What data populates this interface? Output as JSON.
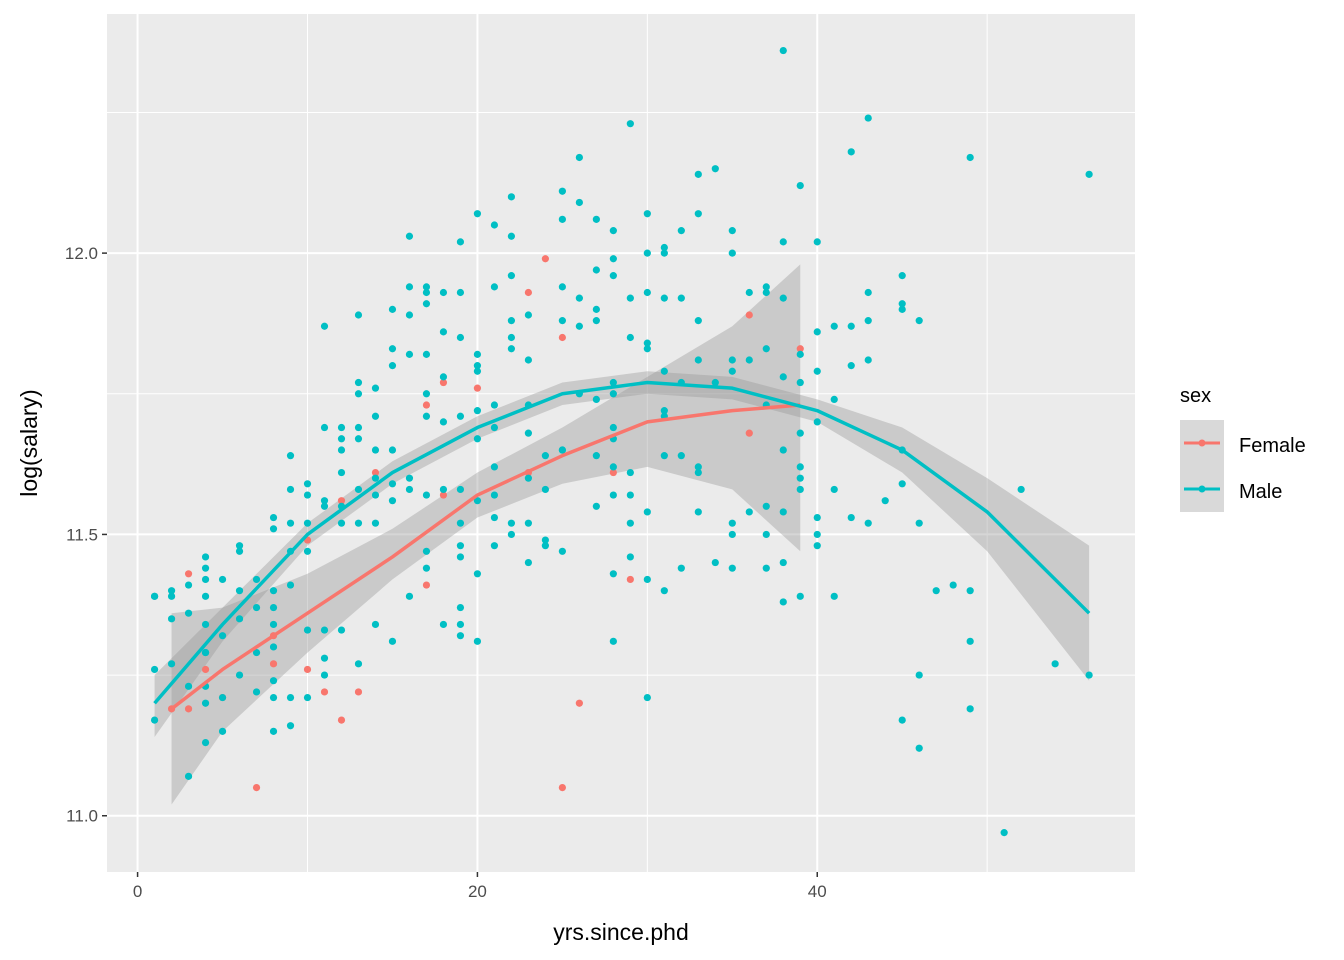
{
  "chart_data": {
    "type": "scatter",
    "title": "",
    "xlabel": "yrs.since.phd",
    "ylabel": "log(salary)",
    "xlim": [
      -1.8,
      58.7
    ],
    "ylim": [
      10.9,
      12.425
    ],
    "x_ticks": [
      0,
      20,
      40
    ],
    "x_tick_labels": [
      "0",
      "20",
      "40"
    ],
    "y_ticks": [
      11.0,
      11.5,
      12.0
    ],
    "y_tick_labels": [
      "11.0",
      "11.5",
      "12.0"
    ],
    "grid": true,
    "legend": {
      "title": "sex",
      "placement": "right",
      "entries": [
        "Female",
        "Male"
      ]
    },
    "series": [
      {
        "name": "Female",
        "color": "#F8766D",
        "points": [
          [
            2,
            11.19
          ],
          [
            3,
            11.43
          ],
          [
            3,
            11.19
          ],
          [
            4,
            11.26
          ],
          [
            5,
            11.21
          ],
          [
            7,
            11.05
          ],
          [
            8,
            11.27
          ],
          [
            8,
            11.32
          ],
          [
            10,
            11.26
          ],
          [
            10,
            11.49
          ],
          [
            11,
            11.22
          ],
          [
            12,
            11.17
          ],
          [
            12,
            11.56
          ],
          [
            13,
            11.22
          ],
          [
            14,
            11.61
          ],
          [
            17,
            11.41
          ],
          [
            17,
            11.73
          ],
          [
            18,
            11.77
          ],
          [
            18,
            11.57
          ],
          [
            20,
            11.76
          ],
          [
            23,
            11.93
          ],
          [
            23,
            11.61
          ],
          [
            24,
            11.99
          ],
          [
            25,
            11.85
          ],
          [
            25,
            11.05
          ],
          [
            26,
            11.2
          ],
          [
            28,
            11.61
          ],
          [
            29,
            11.42
          ],
          [
            36,
            11.89
          ],
          [
            36,
            11.68
          ],
          [
            39,
            11.83
          ]
        ],
        "smooth": {
          "x": [
            2,
            5,
            10,
            15,
            20,
            25,
            30,
            35,
            39
          ],
          "fit": [
            11.19,
            11.26,
            11.36,
            11.46,
            11.57,
            11.64,
            11.7,
            11.72,
            11.73
          ],
          "lower": [
            11.02,
            11.15,
            11.29,
            11.42,
            11.53,
            11.59,
            11.62,
            11.58,
            11.47
          ],
          "upper": [
            11.36,
            11.37,
            11.43,
            11.51,
            11.61,
            11.69,
            11.78,
            11.87,
            11.98
          ]
        }
      },
      {
        "name": "Male",
        "color": "#00BFC4",
        "points_by_x": [
          {
            "x": 1,
            "y": [
              11.39,
              11.39,
              11.26,
              11.17
            ]
          },
          {
            "x": 2,
            "y": [
              11.4,
              11.39,
              11.35,
              11.27
            ]
          },
          {
            "x": 3,
            "y": [
              11.41,
              11.36,
              11.23,
              11.07
            ]
          },
          {
            "x": 4,
            "y": [
              11.46,
              11.44,
              11.42,
              11.39,
              11.34,
              11.29,
              11.29,
              11.23,
              11.2,
              11.13
            ]
          },
          {
            "x": 5,
            "y": [
              11.42,
              11.32,
              11.21,
              11.15
            ]
          },
          {
            "x": 6,
            "y": [
              11.48,
              11.47,
              11.4,
              11.35,
              11.25
            ]
          },
          {
            "x": 7,
            "y": [
              11.42,
              11.37,
              11.29,
              11.22
            ]
          },
          {
            "x": 8,
            "y": [
              11.53,
              11.51,
              11.4,
              11.37,
              11.34,
              11.3,
              11.24,
              11.21,
              11.15
            ]
          },
          {
            "x": 9,
            "y": [
              11.64,
              11.58,
              11.52,
              11.47,
              11.41,
              11.21,
              11.16
            ]
          },
          {
            "x": 10,
            "y": [
              11.59,
              11.57,
              11.52,
              11.47,
              11.33,
              11.21
            ]
          },
          {
            "x": 11,
            "y": [
              11.87,
              11.69,
              11.56,
              11.55,
              11.33,
              11.28,
              11.25
            ]
          },
          {
            "x": 12,
            "y": [
              11.69,
              11.67,
              11.65,
              11.61,
              11.55,
              11.52,
              11.33
            ]
          },
          {
            "x": 13,
            "y": [
              11.89,
              11.77,
              11.75,
              11.69,
              11.67,
              11.58,
              11.52,
              11.27
            ]
          },
          {
            "x": 14,
            "y": [
              11.76,
              11.71,
              11.65,
              11.6,
              11.57,
              11.52,
              11.34
            ]
          },
          {
            "x": 15,
            "y": [
              11.9,
              11.83,
              11.8,
              11.65,
              11.59,
              11.56,
              11.31
            ]
          },
          {
            "x": 16,
            "y": [
              12.03,
              11.94,
              11.89,
              11.82,
              11.6,
              11.58,
              11.39
            ]
          },
          {
            "x": 17,
            "y": [
              11.94,
              11.93,
              11.91,
              11.82,
              11.75,
              11.71,
              11.57,
              11.47,
              11.44
            ]
          },
          {
            "x": 18,
            "y": [
              11.93,
              11.86,
              11.78,
              11.7,
              11.58,
              11.34
            ]
          },
          {
            "x": 19,
            "y": [
              12.02,
              11.93,
              11.85,
              11.71,
              11.58,
              11.52,
              11.48,
              11.46,
              11.37,
              11.34,
              11.32
            ]
          },
          {
            "x": 20,
            "y": [
              12.07,
              11.82,
              11.8,
              11.79,
              11.72,
              11.67,
              11.56,
              11.43,
              11.31
            ]
          },
          {
            "x": 21,
            "y": [
              12.05,
              11.94,
              11.73,
              11.69,
              11.62,
              11.57,
              11.53,
              11.48
            ]
          },
          {
            "x": 22,
            "y": [
              12.1,
              12.03,
              11.96,
              11.88,
              11.85,
              11.83,
              11.52,
              11.5
            ]
          },
          {
            "x": 23,
            "y": [
              11.89,
              11.81,
              11.73,
              11.68,
              11.6,
              11.52,
              11.45
            ]
          },
          {
            "x": 24,
            "y": [
              11.64,
              11.58,
              11.49,
              11.48
            ]
          },
          {
            "x": 25,
            "y": [
              12.11,
              12.06,
              11.94,
              11.88,
              11.65,
              11.65,
              11.47
            ]
          },
          {
            "x": 26,
            "y": [
              12.17,
              12.09,
              11.92,
              11.87,
              11.75
            ]
          },
          {
            "x": 27,
            "y": [
              12.06,
              11.97,
              11.9,
              11.88,
              11.74,
              11.64,
              11.55
            ]
          },
          {
            "x": 28,
            "y": [
              12.04,
              11.99,
              11.96,
              11.77,
              11.75,
              11.69,
              11.67,
              11.62,
              11.57,
              11.43,
              11.31
            ]
          },
          {
            "x": 29,
            "y": [
              12.23,
              11.92,
              11.85,
              11.61,
              11.57,
              11.52,
              11.46
            ]
          },
          {
            "x": 30,
            "y": [
              12.07,
              12.0,
              11.93,
              11.84,
              11.83,
              11.54,
              11.42,
              11.21
            ]
          },
          {
            "x": 31,
            "y": [
              12.01,
              12.0,
              11.92,
              11.79,
              11.72,
              11.71,
              11.64,
              11.4
            ]
          },
          {
            "x": 32,
            "y": [
              12.04,
              11.92,
              11.77,
              11.64,
              11.44
            ]
          },
          {
            "x": 33,
            "y": [
              12.14,
              12.07,
              11.88,
              11.81,
              11.62,
              11.61,
              11.54
            ]
          },
          {
            "x": 34,
            "y": [
              12.15,
              11.77,
              11.45
            ]
          },
          {
            "x": 35,
            "y": [
              12.04,
              12.0,
              11.81,
              11.79,
              11.52,
              11.5,
              11.44
            ]
          },
          {
            "x": 36,
            "y": [
              11.93,
              11.81,
              11.54
            ]
          },
          {
            "x": 37,
            "y": [
              11.94,
              11.93,
              11.83,
              11.73,
              11.55,
              11.5,
              11.44
            ]
          },
          {
            "x": 38,
            "y": [
              12.36,
              12.02,
              11.92,
              11.78,
              11.65,
              11.54,
              11.45,
              11.38
            ]
          },
          {
            "x": 39,
            "y": [
              12.12,
              11.82,
              11.77,
              11.68,
              11.62,
              11.6,
              11.58,
              11.39
            ]
          },
          {
            "x": 40,
            "y": [
              12.02,
              11.86,
              11.79,
              11.7,
              11.53,
              11.5,
              11.48
            ]
          },
          {
            "x": 41,
            "y": [
              11.87,
              11.74,
              11.58,
              11.39
            ]
          },
          {
            "x": 42,
            "y": [
              12.18,
              11.87,
              11.8,
              11.53
            ]
          },
          {
            "x": 43,
            "y": [
              12.24,
              11.93,
              11.88,
              11.81,
              11.52
            ]
          },
          {
            "x": 44,
            "y": [
              11.56
            ]
          },
          {
            "x": 45,
            "y": [
              11.96,
              11.91,
              11.9,
              11.65,
              11.59,
              11.17
            ]
          },
          {
            "x": 46,
            "y": [
              11.88,
              11.52,
              11.25,
              11.12
            ]
          },
          {
            "x": 47,
            "y": [
              11.4
            ]
          },
          {
            "x": 48,
            "y": [
              11.41
            ]
          },
          {
            "x": 49,
            "y": [
              12.17,
              11.4,
              11.31,
              11.19
            ]
          },
          {
            "x": 51,
            "y": [
              10.97
            ]
          },
          {
            "x": 52,
            "y": [
              11.58
            ]
          },
          {
            "x": 54,
            "y": [
              11.27
            ]
          },
          {
            "x": 56,
            "y": [
              12.14,
              11.25
            ]
          }
        ],
        "smooth": {
          "x": [
            1,
            5,
            10,
            15,
            20,
            25,
            30,
            35,
            40,
            45,
            50,
            56
          ],
          "fit": [
            11.2,
            11.34,
            11.5,
            11.61,
            11.69,
            11.75,
            11.77,
            11.76,
            11.72,
            11.65,
            11.54,
            11.36
          ],
          "lower": [
            11.14,
            11.31,
            11.48,
            11.59,
            11.67,
            11.73,
            11.75,
            11.74,
            11.7,
            11.61,
            11.47,
            11.24
          ],
          "upper": [
            11.25,
            11.37,
            11.52,
            11.63,
            11.71,
            11.77,
            11.79,
            11.78,
            11.74,
            11.69,
            11.6,
            11.48
          ]
        }
      }
    ]
  }
}
